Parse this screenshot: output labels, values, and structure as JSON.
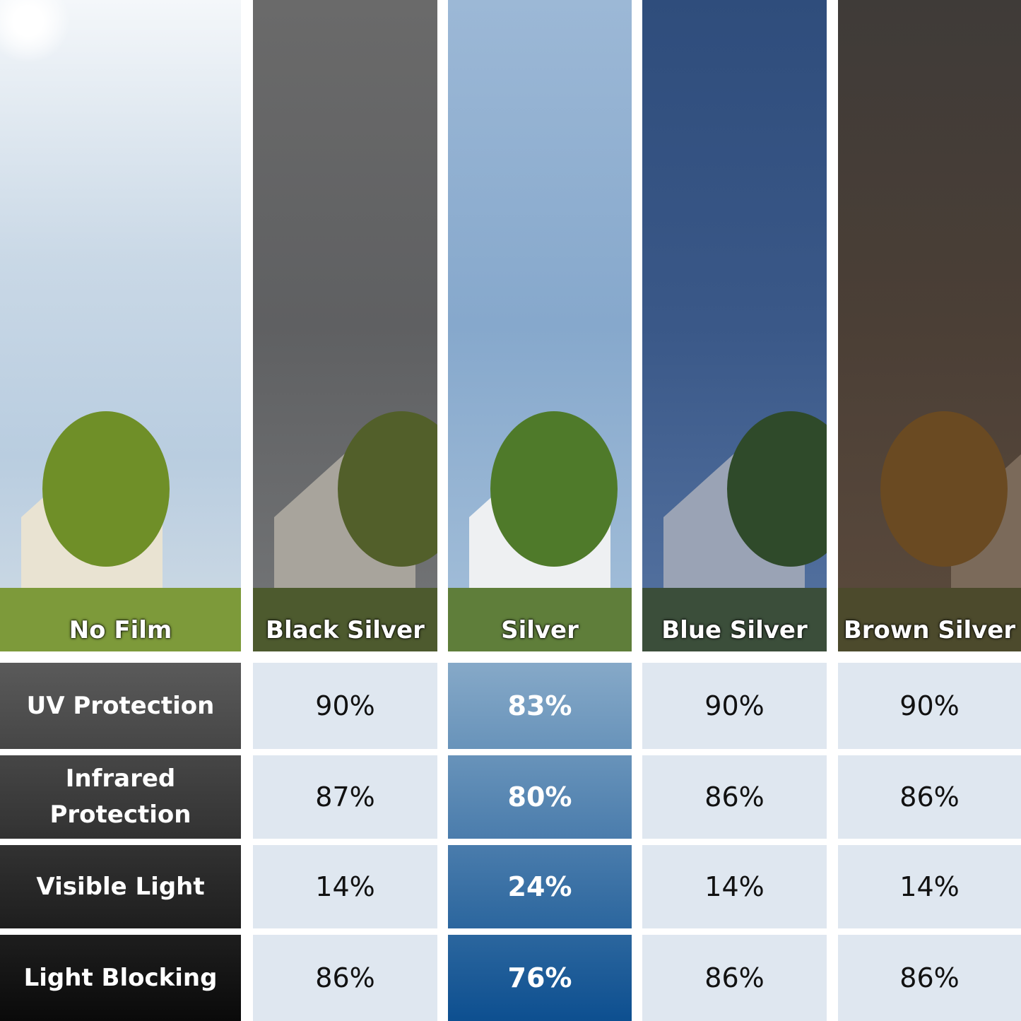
{
  "columns": [
    {
      "label": "No Film",
      "tint": "#c9d8e6"
    },
    {
      "label": "Black Silver",
      "tint": "#555555"
    },
    {
      "label": "Silver",
      "tint": "#8fb0d2"
    },
    {
      "label": "Blue Silver",
      "tint": "#2d4a7a"
    },
    {
      "label": "Brown Silver",
      "tint": "#4a3d35"
    }
  ],
  "rows": [
    {
      "label": "UV Protection",
      "values": [
        "90%",
        "83%",
        "90%",
        "90%"
      ]
    },
    {
      "label": "Infrared Protection",
      "values": [
        "87%",
        "80%",
        "86%",
        "86%"
      ]
    },
    {
      "label": "Visible Light",
      "values": [
        "14%",
        "24%",
        "14%",
        "14%"
      ]
    },
    {
      "label": "Light Blocking",
      "values": [
        "86%",
        "76%",
        "86%",
        "86%"
      ]
    }
  ],
  "colors": {
    "cell_bg": "#dfe7f0",
    "highlight_top": "#86a9c8",
    "highlight_bottom": "#0d4f90",
    "row_header_top": "#5a5a5a",
    "row_header_bottom": "#0a0a0a"
  }
}
